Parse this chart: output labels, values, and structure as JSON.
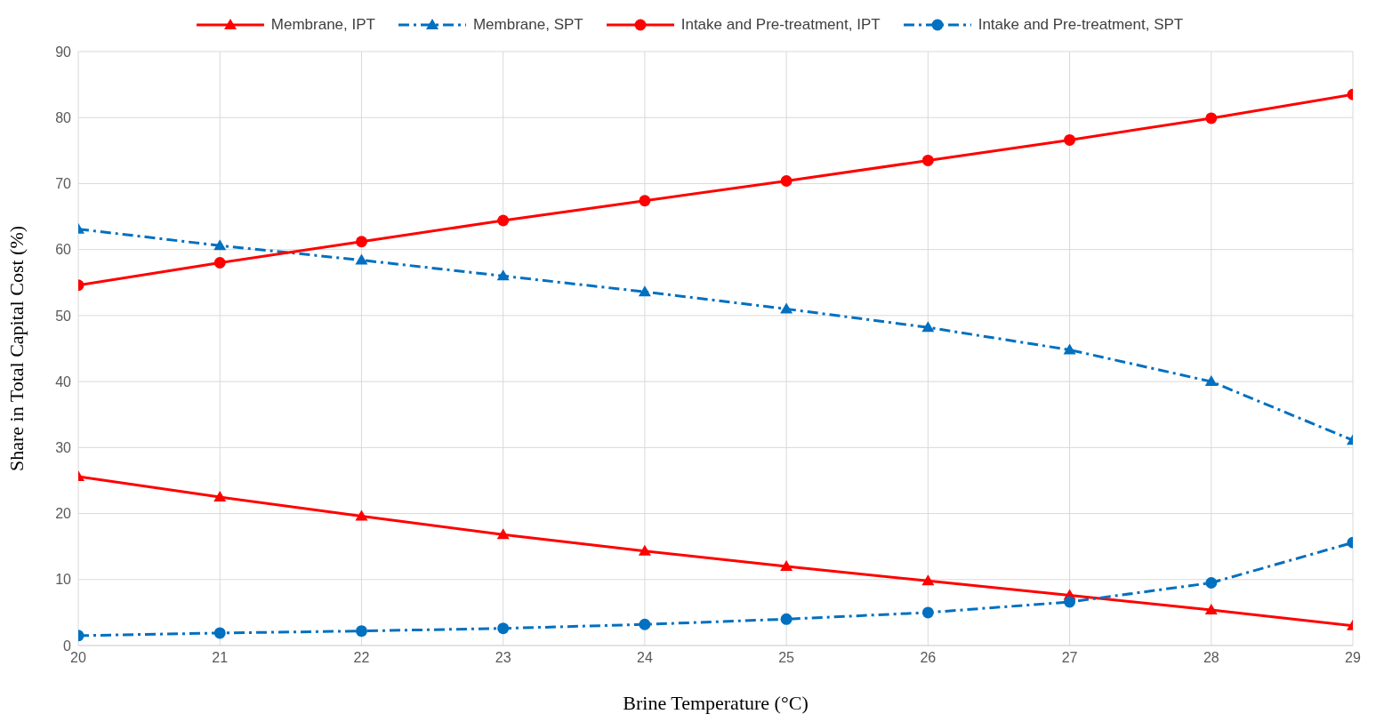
{
  "chart_data": {
    "type": "line",
    "xlabel": "Brine Temperature (°C)",
    "ylabel": "Share in Total Capital Cost (%)",
    "x": [
      20,
      21,
      22,
      23,
      24,
      25,
      26,
      27,
      28,
      29
    ],
    "xlim": [
      20,
      29
    ],
    "xticks": [
      20,
      21,
      22,
      23,
      24,
      25,
      26,
      27,
      28,
      29
    ],
    "ylim": [
      0,
      90
    ],
    "yticks": [
      0,
      10,
      20,
      30,
      40,
      50,
      60,
      70,
      80,
      90
    ],
    "grid": true,
    "legend": "top",
    "series": [
      {
        "name": "Membrane, IPT",
        "color": "#ff0000",
        "marker": "triangle",
        "line_style": "solid",
        "values": [
          25.6,
          22.5,
          19.6,
          16.8,
          14.3,
          12.0,
          9.8,
          7.6,
          5.4,
          3.0
        ]
      },
      {
        "name": "Membrane, SPT",
        "color": "#0070c0",
        "marker": "triangle",
        "line_style": "dashed",
        "values": [
          63.1,
          60.6,
          58.4,
          56.0,
          53.6,
          51.0,
          48.2,
          44.8,
          40.0,
          31.1
        ]
      },
      {
        "name": "Intake and Pre-treatment, IPT",
        "color": "#ff0000",
        "marker": "circle",
        "line_style": "solid",
        "values": [
          54.6,
          58.0,
          61.2,
          64.4,
          67.4,
          70.4,
          73.5,
          76.6,
          79.9,
          83.5
        ]
      },
      {
        "name": "Intake and Pre-treatment, SPT",
        "color": "#0070c0",
        "marker": "circle",
        "line_style": "dashed",
        "values": [
          1.5,
          1.9,
          2.2,
          2.6,
          3.2,
          4.0,
          5.0,
          6.6,
          9.5,
          15.6
        ]
      }
    ]
  }
}
